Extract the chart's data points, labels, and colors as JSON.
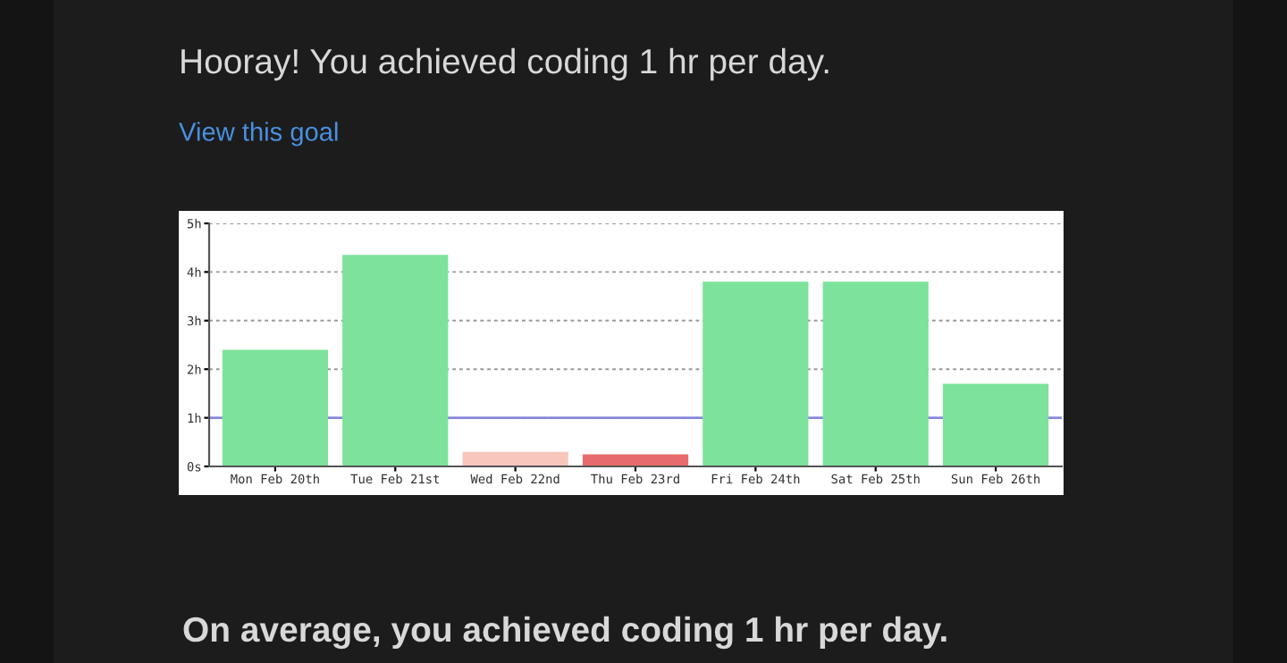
{
  "chart_data": {
    "type": "bar",
    "title": "Hooray! You achieved coding 1 hr per day.",
    "annotations": [
      "View this goal",
      "On average, you achieved coding 1 hr per day."
    ],
    "categories": [
      "Mon Feb 20th",
      "Tue Feb 21st",
      "Wed Feb 22nd",
      "Thu Feb 23rd",
      "Fri Feb 24th",
      "Sat Feb 25th",
      "Sun Feb 26th"
    ],
    "values": [
      2.4,
      4.35,
      0.3,
      0.25,
      3.8,
      3.8,
      1.7
    ],
    "colors": [
      "#7de29b",
      "#7de29b",
      "#f9c6bb",
      "#e76b6e",
      "#7de29b",
      "#7de29b",
      "#7de29b"
    ],
    "ylim": [
      0,
      5
    ],
    "yticks": [
      {
        "value": 0,
        "label": "0s"
      },
      {
        "value": 1,
        "label": "1h"
      },
      {
        "value": 2,
        "label": "2h"
      },
      {
        "value": 3,
        "label": "3h"
      },
      {
        "value": 4,
        "label": "4h"
      },
      {
        "value": 5,
        "label": "5h"
      }
    ],
    "ref_lines": [
      {
        "axis": "y",
        "value": 1,
        "label": null,
        "color": "#8888dd"
      }
    ],
    "grid": "y"
  }
}
